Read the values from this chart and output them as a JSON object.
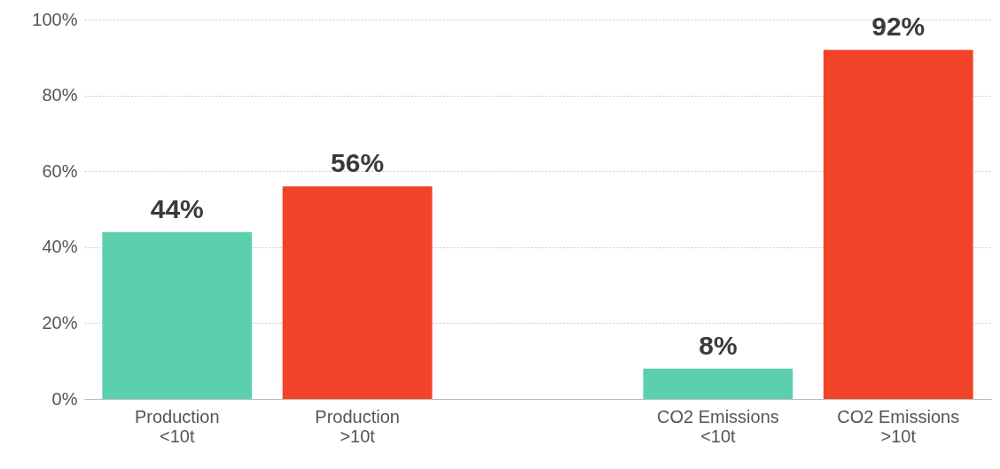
{
  "chart_data": {
    "type": "bar",
    "categories": [
      "Production <10t",
      "Production >10t",
      null,
      "CO2 Emissions <10t",
      "CO2 Emissions >10t"
    ],
    "values": [
      44,
      56,
      null,
      8,
      92
    ],
    "colors": [
      "#5ccfae",
      "#f04328",
      null,
      "#5ccfae",
      "#f04328"
    ],
    "value_labels": [
      "44%",
      "56%",
      null,
      "8%",
      "92%"
    ],
    "ylim": [
      0,
      100
    ],
    "yticks": [
      {
        "value": 0,
        "label": "0%"
      },
      {
        "value": 20,
        "label": "20%"
      },
      {
        "value": 40,
        "label": "40%"
      },
      {
        "value": 60,
        "label": "60%"
      },
      {
        "value": 80,
        "label": "80%"
      },
      {
        "value": 100,
        "label": "100%"
      }
    ],
    "grid": "y"
  }
}
